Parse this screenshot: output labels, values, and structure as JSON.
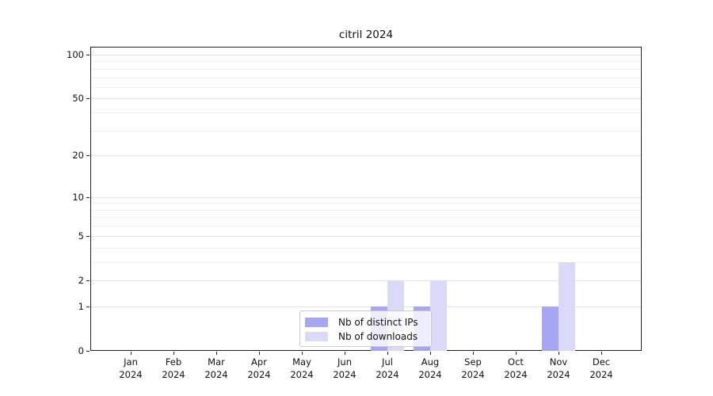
{
  "title": "citril 2024",
  "colors": {
    "distinct_ips": "#a6a6f5",
    "downloads": "#dadaf8",
    "grid_major": "#e3e3e3",
    "grid_minor": "#f2f2f2",
    "axis": "#222222"
  },
  "legend": {
    "items": [
      {
        "label": "Nb of distinct IPs",
        "color_key": "distinct_ips"
      },
      {
        "label": "Nb of downloads",
        "color_key": "downloads"
      }
    ]
  },
  "chart_data": {
    "type": "bar",
    "title": "citril 2024",
    "x_months": [
      "Jan",
      "Feb",
      "Mar",
      "Apr",
      "May",
      "Jun",
      "Jul",
      "Aug",
      "Sep",
      "Oct",
      "Nov",
      "Dec"
    ],
    "x_year": "2024",
    "series": [
      {
        "name": "Nb of distinct IPs",
        "values": [
          0,
          0,
          0,
          0,
          0,
          0,
          1,
          1,
          0,
          0,
          1,
          0
        ]
      },
      {
        "name": "Nb of downloads",
        "values": [
          0,
          0,
          0,
          0,
          0,
          0,
          2,
          2,
          0,
          0,
          3,
          0
        ]
      }
    ],
    "y_scale": "log10(1+v)",
    "y_ticks_major": [
      0,
      1,
      2,
      5,
      10,
      20,
      50,
      100
    ],
    "y_ticks_minor": [
      3,
      4,
      6,
      7,
      8,
      9,
      30,
      40,
      60,
      70,
      80,
      90
    ],
    "ylim": [
      0,
      110
    ],
    "xlabel": "",
    "ylabel": "",
    "grid": "horizontal",
    "legend_position": "lower-center-inside"
  }
}
